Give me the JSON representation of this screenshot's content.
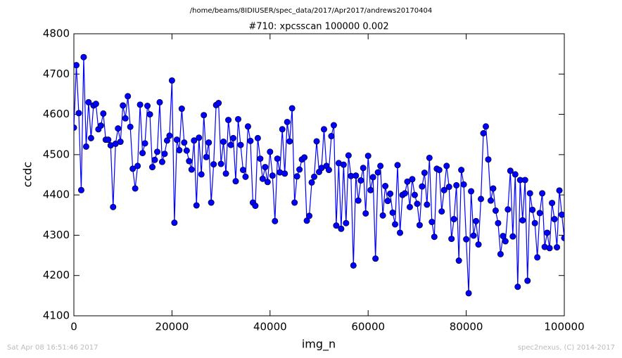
{
  "chart_data": {
    "type": "line",
    "suptitle": "/home/beams/8IDIUSER/spec_data/2017/Apr2017/andrews20170404",
    "title": "#710: xpcsscan 100000 0.002",
    "x_label": "img_n",
    "y_label": "ccdc",
    "footer_left": "Sat Apr 08 16:51:46 2017",
    "footer_right": "spec2nexus, (C) 2014-2017",
    "color": "#0000ff",
    "xlim": [
      0,
      100000
    ],
    "xticks": [
      0,
      20000,
      40000,
      60000,
      80000,
      100000
    ],
    "ylim": [
      4100,
      4800
    ],
    "yticks": [
      4100,
      4200,
      4300,
      4400,
      4500,
      4600,
      4700,
      4800
    ],
    "x": [
      0,
      500,
      1000,
      1500,
      2000,
      2500,
      3000,
      3500,
      4000,
      4500,
      5000,
      5500,
      6000,
      6500,
      7000,
      7500,
      8000,
      8500,
      9000,
      9500,
      10000,
      10500,
      11000,
      11500,
      12000,
      12500,
      13000,
      13500,
      14000,
      14500,
      15000,
      15500,
      16000,
      16500,
      17000,
      17500,
      18000,
      18500,
      19000,
      19500,
      20000,
      20500,
      21000,
      21500,
      22000,
      22500,
      23000,
      23500,
      24000,
      24500,
      25000,
      25500,
      26000,
      26500,
      27000,
      27500,
      28000,
      28500,
      29000,
      29500,
      30000,
      30500,
      31000,
      31500,
      32000,
      32500,
      33000,
      33500,
      34000,
      34500,
      35000,
      35500,
      36000,
      36500,
      37000,
      37500,
      38000,
      38500,
      39000,
      39500,
      40000,
      40500,
      41000,
      41500,
      42000,
      42500,
      43000,
      43500,
      44000,
      44500,
      45000,
      45500,
      46000,
      46500,
      47000,
      47500,
      48000,
      48500,
      49000,
      49500,
      50000,
      50500,
      51000,
      51500,
      52000,
      52500,
      53000,
      53500,
      54000,
      54500,
      55000,
      55500,
      56000,
      56500,
      57000,
      57500,
      58000,
      58500,
      59000,
      59500,
      60000,
      60500,
      61000,
      61500,
      62000,
      62500,
      63000,
      63500,
      64000,
      64500,
      65000,
      65500,
      66000,
      66500,
      67000,
      67500,
      68000,
      68500,
      69000,
      69500,
      70000,
      70500,
      71000,
      71500,
      72000,
      72500,
      73000,
      73500,
      74000,
      74500,
      75000,
      75500,
      76000,
      76500,
      77000,
      77500,
      78000,
      78500,
      79000,
      79500,
      80000,
      80500,
      81000,
      81500,
      82000,
      82500,
      83000,
      83500,
      84000,
      84500,
      85000,
      85500,
      86000,
      86500,
      87000,
      87500,
      88000,
      88500,
      89000,
      89500,
      90000,
      90500,
      91000,
      91500,
      92000,
      92500,
      93000,
      93500,
      94000,
      94500,
      95000,
      95500,
      96000,
      96500,
      97000,
      97500,
      98000,
      98500,
      99000,
      99500,
      100000
    ],
    "values": [
      4567,
      4722,
      4603,
      4412,
      4742,
      4520,
      4630,
      4541,
      4622,
      4626,
      4563,
      4572,
      4602,
      4537,
      4537,
      4523,
      4370,
      4527,
      4565,
      4532,
      4622,
      4590,
      4645,
      4569,
      4465,
      4416,
      4472,
      4624,
      4504,
      4528,
      4621,
      4600,
      4469,
      4487,
      4507,
      4630,
      4482,
      4502,
      4535,
      4547,
      4684,
      4331,
      4537,
      4511,
      4614,
      4530,
      4510,
      4484,
      4463,
      4535,
      4374,
      4542,
      4451,
      4598,
      4494,
      4530,
      4381,
      4476,
      4623,
      4628,
      4477,
      4532,
      4453,
      4586,
      4524,
      4541,
      4434,
      4588,
      4524,
      4462,
      4445,
      4570,
      4534,
      4381,
      4373,
      4541,
      4490,
      4440,
      4469,
      4432,
      4507,
      4448,
      4335,
      4490,
      4456,
      4563,
      4453,
      4581,
      4533,
      4615,
      4381,
      4446,
      4463,
      4488,
      4493,
      4336,
      4348,
      4431,
      4445,
      4533,
      4457,
      4467,
      4563,
      4472,
      4462,
      4546,
      4573,
      4324,
      4479,
      4316,
      4475,
      4330,
      4498,
      4447,
      4225,
      4448,
      4386,
      4436,
      4467,
      4354,
      4497,
      4412,
      4444,
      4242,
      4456,
      4472,
      4349,
      4422,
      4385,
      4403,
      4356,
      4327,
      4474,
      4306,
      4400,
      4404,
      4433,
      4370,
      4439,
      4400,
      4378,
      4325,
      4421,
      4455,
      4376,
      4492,
      4333,
      4296,
      4465,
      4462,
      4359,
      4412,
      4472,
      4420,
      4291,
      4340,
      4424,
      4237,
      4462,
      4426,
      4290,
      4156,
      4409,
      4299,
      4335,
      4277,
      4390,
      4553,
      4570,
      4488,
      4386,
      4416,
      4361,
      4330,
      4253,
      4298,
      4285,
      4364,
      4460,
      4297,
      4451,
      4172,
      4437,
      4337,
      4437,
      4187,
      4404,
      4363,
      4330,
      4245,
      4355,
      4404,
      4271,
      4306,
      4268,
      4380,
      4340,
      4270,
      4411,
      4351,
      4293
    ]
  }
}
